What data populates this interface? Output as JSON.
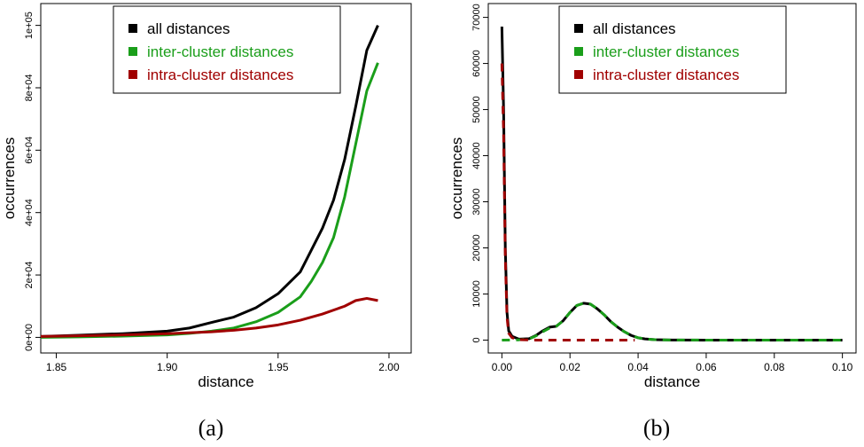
{
  "chart_data": [
    {
      "type": "line",
      "panel_label": "(a)",
      "xlabel": "distance",
      "ylabel": "occurrences",
      "xlim": [
        1.843,
        2.01
      ],
      "ylim": [
        -5000,
        107000
      ],
      "xticks": [
        1.85,
        1.9,
        1.95,
        2.0
      ],
      "xtick_labels": [
        "1.85",
        "1.90",
        "1.95",
        "2.00"
      ],
      "yticks": [
        0,
        20000,
        40000,
        60000,
        80000,
        100000
      ],
      "ytick_labels": [
        "0e+00",
        "2e+04",
        "4e+04",
        "6e+04",
        "8e+04",
        "1e+05"
      ],
      "legend_position": "top-center",
      "series": [
        {
          "name": "all distances",
          "color": "#000000",
          "dash": "solid",
          "x": [
            1.843,
            1.86,
            1.88,
            1.9,
            1.91,
            1.92,
            1.93,
            1.94,
            1.95,
            1.96,
            1.965,
            1.97,
            1.975,
            1.98,
            1.985,
            1.99,
            1.995
          ],
          "y": [
            300,
            700,
            1200,
            2000,
            3000,
            4800,
            6500,
            9500,
            14000,
            21000,
            28000,
            35000,
            44000,
            57000,
            74000,
            92000,
            100000
          ]
        },
        {
          "name": "inter-cluster distances",
          "color": "#1a9e1a",
          "dash": "solid",
          "x": [
            1.843,
            1.86,
            1.88,
            1.9,
            1.91,
            1.92,
            1.93,
            1.94,
            1.95,
            1.96,
            1.965,
            1.97,
            1.975,
            1.98,
            1.985,
            1.99,
            1.995
          ],
          "y": [
            0,
            150,
            400,
            800,
            1300,
            2000,
            3000,
            5000,
            8000,
            13000,
            18000,
            24000,
            32000,
            45000,
            62000,
            79000,
            88000
          ]
        },
        {
          "name": "intra-cluster distances",
          "color": "#a00000",
          "dash": "solid",
          "x": [
            1.843,
            1.86,
            1.88,
            1.9,
            1.92,
            1.93,
            1.94,
            1.95,
            1.96,
            1.97,
            1.98,
            1.985,
            1.99,
            1.995
          ],
          "y": [
            300,
            500,
            800,
            1200,
            1800,
            2300,
            3000,
            4000,
            5500,
            7500,
            10000,
            11800,
            12500,
            11800
          ]
        }
      ]
    },
    {
      "type": "line",
      "panel_label": "(b)",
      "xlabel": "distance",
      "ylabel": "occurrences",
      "xlim": [
        -0.004,
        0.104
      ],
      "ylim": [
        -2800,
        73000
      ],
      "xticks": [
        0.0,
        0.02,
        0.04,
        0.06,
        0.08,
        0.1
      ],
      "xtick_labels": [
        "0.00",
        "0.02",
        "0.04",
        "0.06",
        "0.08",
        "0.10"
      ],
      "yticks": [
        0,
        10000,
        20000,
        30000,
        40000,
        50000,
        60000,
        70000
      ],
      "ytick_labels": [
        "0",
        "10000",
        "20000",
        "30000",
        "40000",
        "50000",
        "60000",
        "70000"
      ],
      "legend_position": "top-center",
      "series": [
        {
          "name": "all distances",
          "color": "#000000",
          "dash": "solid",
          "x": [
            0.0,
            0.0005,
            0.001,
            0.0015,
            0.002,
            0.003,
            0.005,
            0.008,
            0.01,
            0.012,
            0.014,
            0.016,
            0.018,
            0.02,
            0.022,
            0.024,
            0.026,
            0.028,
            0.03,
            0.032,
            0.034,
            0.036,
            0.038,
            0.04,
            0.042,
            0.045,
            0.05,
            0.06,
            0.08,
            0.1
          ],
          "y": [
            68000,
            50000,
            20000,
            6000,
            2000,
            800,
            200,
            300,
            1000,
            2000,
            2800,
            3000,
            4200,
            6000,
            7500,
            8000,
            7800,
            6800,
            5500,
            4000,
            2800,
            1800,
            1000,
            500,
            250,
            80,
            10,
            0,
            0,
            0
          ]
        },
        {
          "name": "inter-cluster distances",
          "color": "#1a9e1a",
          "dash": "dashed",
          "x": [
            0.0,
            0.005,
            0.008,
            0.01,
            0.012,
            0.014,
            0.016,
            0.018,
            0.02,
            0.022,
            0.024,
            0.026,
            0.028,
            0.03,
            0.032,
            0.034,
            0.036,
            0.038,
            0.04,
            0.042,
            0.045,
            0.05,
            0.06,
            0.08,
            0.1
          ],
          "y": [
            0,
            50,
            250,
            900,
            1800,
            2600,
            3000,
            4200,
            6000,
            7500,
            8000,
            7800,
            6800,
            5500,
            4000,
            2800,
            1800,
            1000,
            500,
            250,
            80,
            10,
            0,
            0,
            0
          ]
        },
        {
          "name": "intra-cluster distances",
          "color": "#a00000",
          "dash": "dashed",
          "x": [
            0.0,
            0.0005,
            0.001,
            0.0015,
            0.002,
            0.003,
            0.005,
            0.01,
            0.02,
            0.03,
            0.039
          ],
          "y": [
            60000,
            45000,
            18000,
            5000,
            1500,
            500,
            100,
            0,
            0,
            0,
            0
          ]
        }
      ]
    }
  ]
}
